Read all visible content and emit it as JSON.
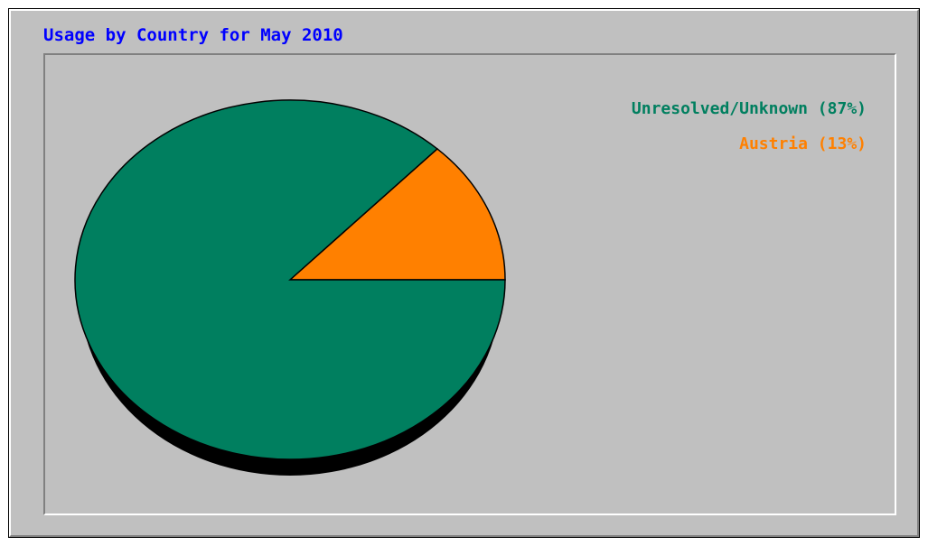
{
  "chart_data": {
    "type": "pie",
    "title": "Usage by Country for May 2010",
    "slices": [
      {
        "label": "Unresolved/Unknown (87%)",
        "name": "Unresolved/Unknown",
        "value": 87,
        "color": "#007f5f"
      },
      {
        "label": "Austria (13%)",
        "name": "Austria",
        "value": 13,
        "color": "#ff8000"
      }
    ],
    "legend": "top-right"
  },
  "colors": {
    "frame_bg": "#c0c0c0",
    "title": "#0000ff",
    "shadow": "#000000"
  }
}
